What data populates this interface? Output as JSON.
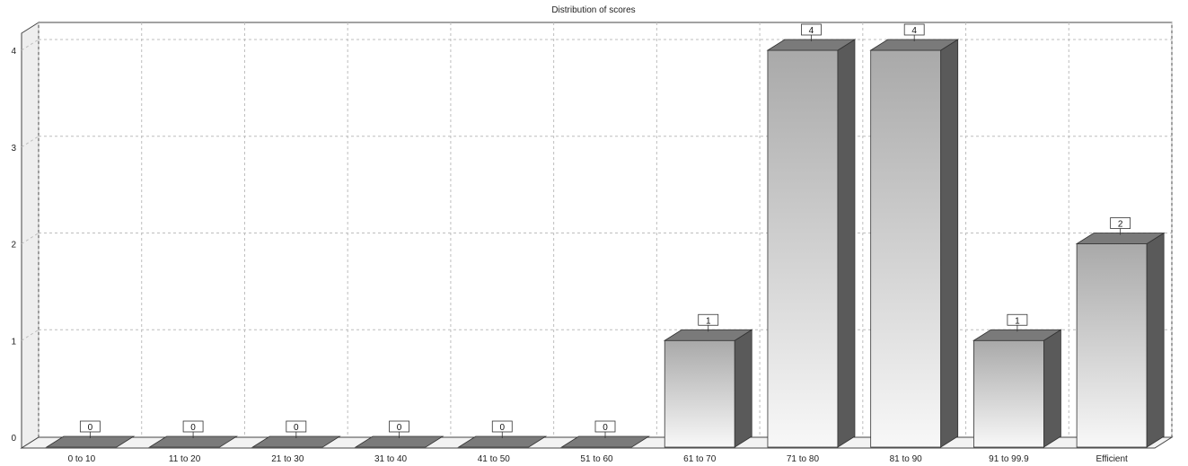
{
  "chart_data": {
    "type": "bar",
    "title": "Distribution of scores",
    "xlabel": "",
    "ylabel": "",
    "categories": [
      "0 to 10",
      "11 to 20",
      "21 to 30",
      "31 to 40",
      "41 to 50",
      "51 to 60",
      "61 to 70",
      "71 to 80",
      "81 to 90",
      "91 to 99.9",
      "Efficient"
    ],
    "values": [
      0,
      0,
      0,
      0,
      0,
      0,
      1,
      4,
      4,
      1,
      2
    ],
    "ylim": [
      0,
      4
    ],
    "yticks": [
      "0",
      "1",
      "2",
      "3",
      "4"
    ],
    "grid": true,
    "legend": "none",
    "style": "3d",
    "colors": {
      "bar_light": "#f8f8f8",
      "bar_dark": "#a9a9a9",
      "bar_side": "#5a5a5a",
      "bar_top": "#7a7a7a",
      "grid": "#bdbdbd",
      "frame": "#444444"
    }
  }
}
